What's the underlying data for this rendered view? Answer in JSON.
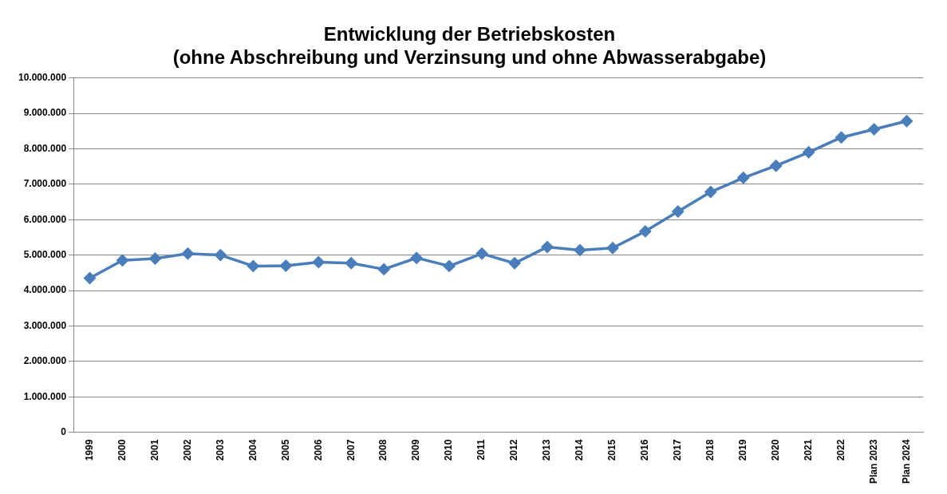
{
  "chart_data": {
    "type": "line",
    "title": "Entwicklung der Betriebskosten\n(ohne Abschreibung und Verzinsung und ohne Abwasserabgabe)",
    "categories": [
      "1999",
      "2000",
      "2001",
      "2002",
      "2003",
      "2004",
      "2005",
      "2006",
      "2007",
      "2008",
      "2009",
      "2010",
      "2011",
      "2012",
      "2013",
      "2014",
      "2015",
      "2016",
      "2017",
      "2018",
      "2019",
      "2020",
      "2021",
      "2022",
      "Plan 2023",
      "Plan 2024"
    ],
    "series": [
      {
        "color": "#4a7ebb",
        "values": [
          4350000,
          4850000,
          4900000,
          5040000,
          5000000,
          4690000,
          4700000,
          4800000,
          4770000,
          4600000,
          4920000,
          4690000,
          5040000,
          4770000,
          5230000,
          5140000,
          5200000,
          5670000,
          6230000,
          6780000,
          7180000,
          7520000,
          7900000,
          8320000,
          8550000,
          8780000
        ]
      }
    ],
    "ylim": [
      0,
      10000000
    ],
    "yticks": [
      {
        "value": 0,
        "label": "0"
      },
      {
        "value": 1000000,
        "label": "1.000.000"
      },
      {
        "value": 2000000,
        "label": "2.000.000"
      },
      {
        "value": 3000000,
        "label": "3.000.000"
      },
      {
        "value": 4000000,
        "label": "4.000.000"
      },
      {
        "value": 5000000,
        "label": "5.000.000"
      },
      {
        "value": 6000000,
        "label": "6.000.000"
      },
      {
        "value": 7000000,
        "label": "7.000.000"
      },
      {
        "value": 8000000,
        "label": "8.000.000"
      },
      {
        "value": 9000000,
        "label": "9.000.000"
      },
      {
        "value": 10000000,
        "label": "10.000.000"
      }
    ],
    "grid": "y",
    "marker": "diamond",
    "line_style": "solid",
    "legend": false
  }
}
